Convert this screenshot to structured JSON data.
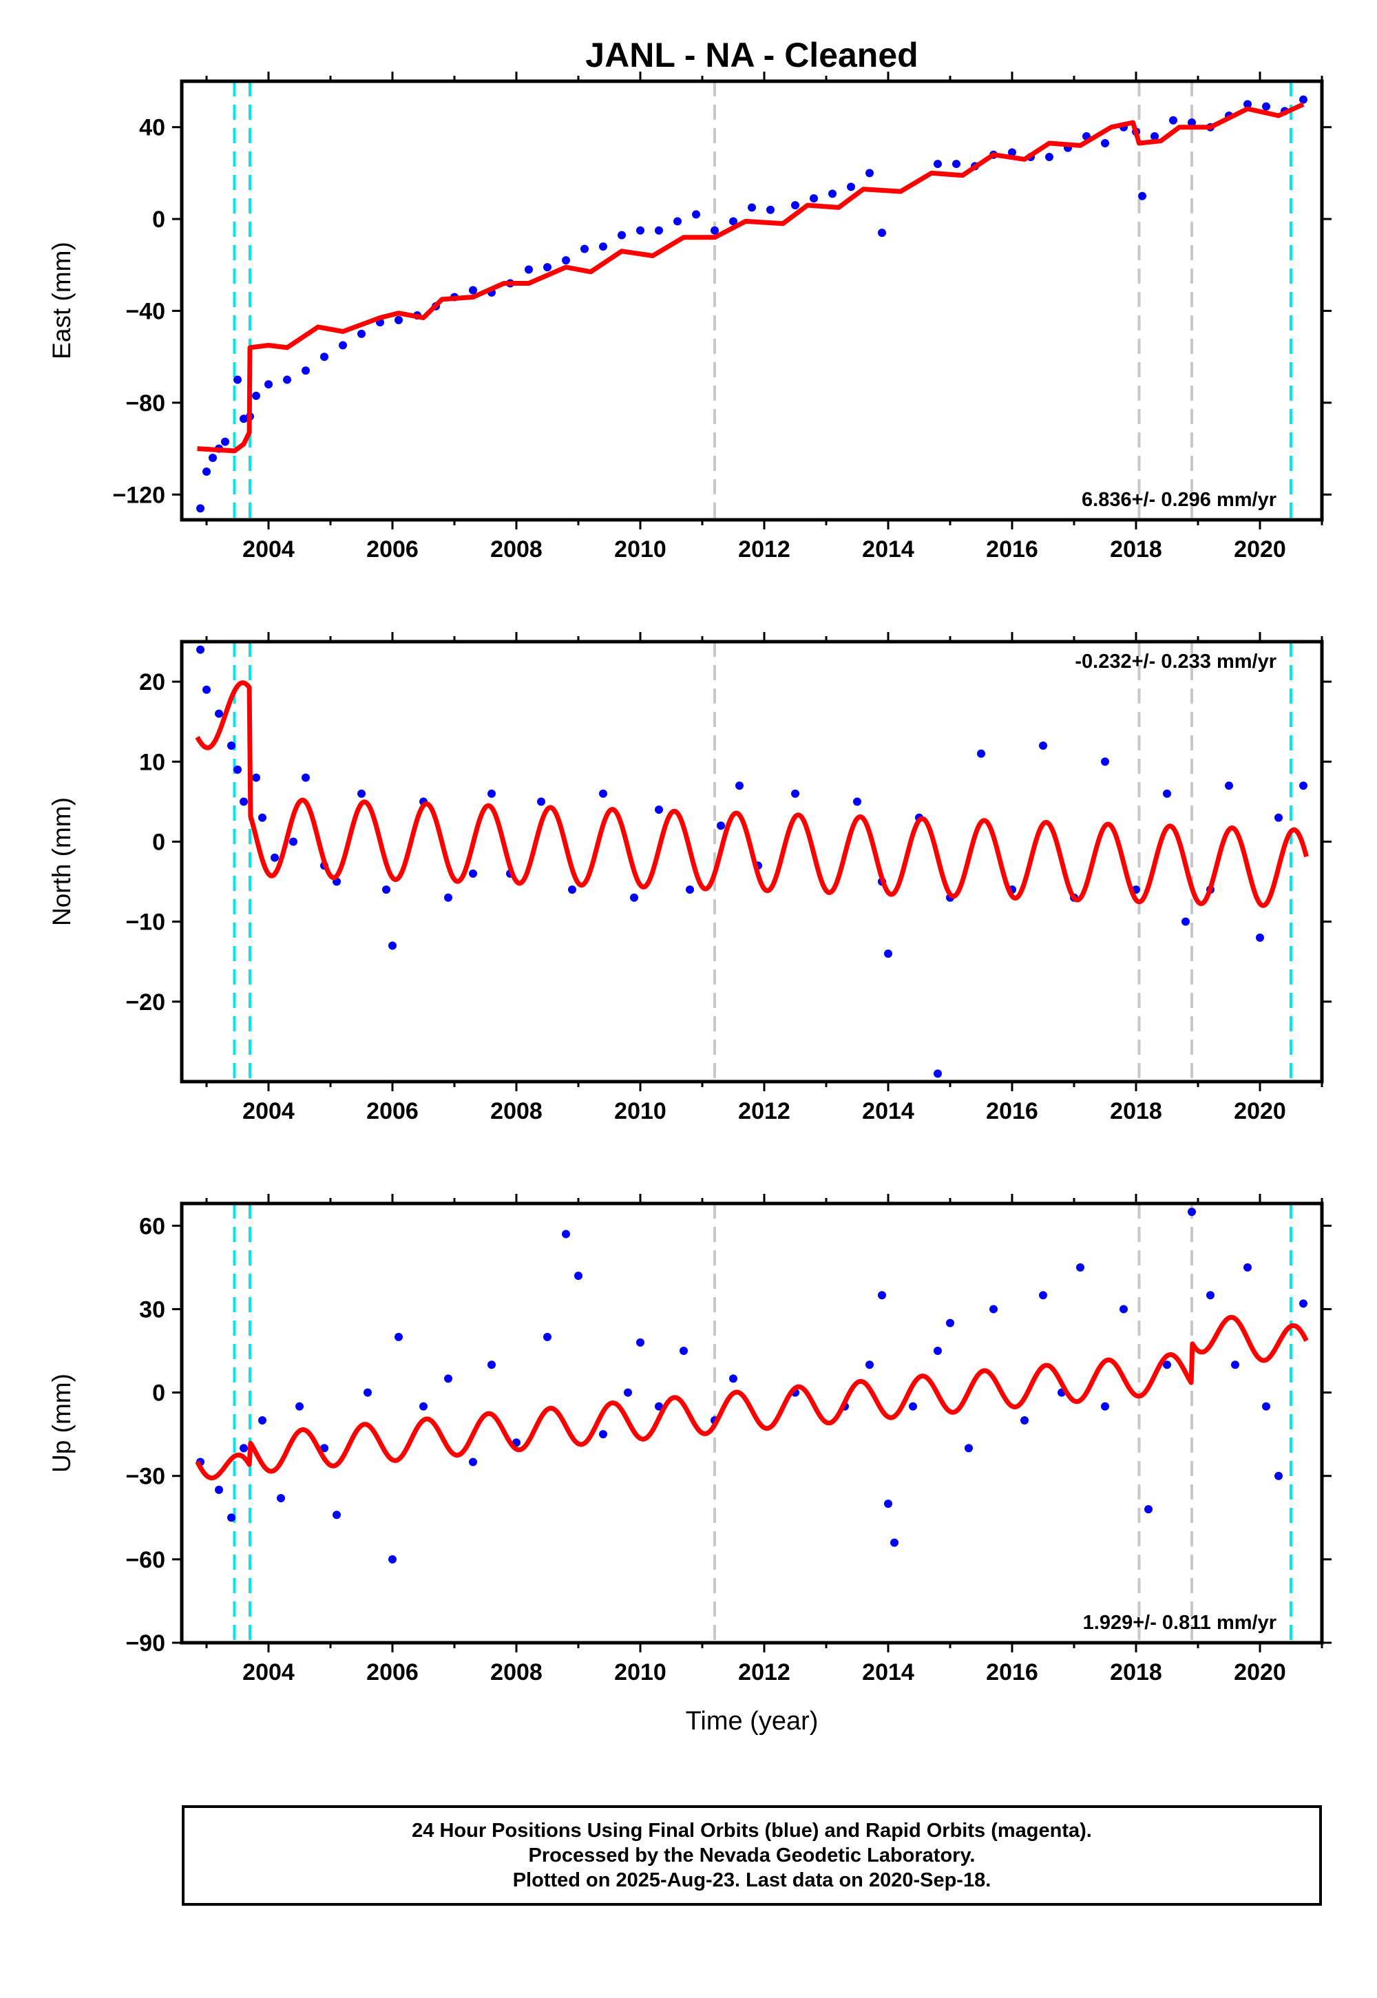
{
  "title": "JANL  - NA - Cleaned",
  "footer": {
    "line1": "24 Hour Positions Using Final Orbits (blue) and Rapid Orbits (magenta).",
    "line2": "Processed by the Nevada Geodetic Laboratory.",
    "line3": "Plotted on 2025-Aug-23. Last data on 2020-Sep-18."
  },
  "colors": {
    "data": "#0000ff",
    "model": "#ff0000",
    "equipment_change": "#00e5ee",
    "earthquake": "#c8c8c8"
  },
  "chart_data": [
    {
      "type": "scatter",
      "name": "east",
      "ylabel": "East (mm)",
      "xlabel": "",
      "xlim": [
        2002.6,
        2021.0
      ],
      "ylim": [
        -131,
        60
      ],
      "xticks": [
        2004,
        2006,
        2008,
        2010,
        2012,
        2014,
        2016,
        2018,
        2020
      ],
      "xtick_labels": [
        "2004",
        "2006",
        "2008",
        "2010",
        "2012",
        "2014",
        "2016",
        "2018",
        "2020"
      ],
      "yticks": [
        -120,
        -80,
        -40,
        0,
        40
      ],
      "ytick_labels": [
        "−120",
        "−80",
        "−40",
        "0",
        "40"
      ],
      "rate_label": "6.836+/- 0.296 mm/yr",
      "rate_position": "bottom-right",
      "equipment_changes": [
        2003.45,
        2003.7,
        2020.5
      ],
      "earthquakes": [
        2011.2,
        2018.05,
        2018.9
      ],
      "data": [
        [
          2002.9,
          -126
        ],
        [
          2003.0,
          -110
        ],
        [
          2003.1,
          -104
        ],
        [
          2003.2,
          -100
        ],
        [
          2003.3,
          -97
        ],
        [
          2003.5,
          -70
        ],
        [
          2003.6,
          -87
        ],
        [
          2003.7,
          -86
        ],
        [
          2003.8,
          -77
        ],
        [
          2004.0,
          -72
        ],
        [
          2004.3,
          -70
        ],
        [
          2004.6,
          -66
        ],
        [
          2004.9,
          -60
        ],
        [
          2005.2,
          -55
        ],
        [
          2005.5,
          -50
        ],
        [
          2005.8,
          -45
        ],
        [
          2006.1,
          -44
        ],
        [
          2006.4,
          -42
        ],
        [
          2006.7,
          -38
        ],
        [
          2007.0,
          -34
        ],
        [
          2007.3,
          -31
        ],
        [
          2007.6,
          -32
        ],
        [
          2007.9,
          -28
        ],
        [
          2008.2,
          -22
        ],
        [
          2008.5,
          -21
        ],
        [
          2008.8,
          -18
        ],
        [
          2009.1,
          -13
        ],
        [
          2009.4,
          -12
        ],
        [
          2009.7,
          -7
        ],
        [
          2010.0,
          -5
        ],
        [
          2010.3,
          -5
        ],
        [
          2010.6,
          -1
        ],
        [
          2010.9,
          2
        ],
        [
          2011.2,
          -5
        ],
        [
          2011.5,
          -1
        ],
        [
          2011.8,
          5
        ],
        [
          2012.1,
          4
        ],
        [
          2012.5,
          6
        ],
        [
          2012.8,
          9
        ],
        [
          2013.1,
          11
        ],
        [
          2013.4,
          14
        ],
        [
          2013.7,
          20
        ],
        [
          2013.9,
          -6
        ],
        [
          2014.8,
          24
        ],
        [
          2015.1,
          24
        ],
        [
          2015.4,
          23
        ],
        [
          2015.7,
          28
        ],
        [
          2016.0,
          29
        ],
        [
          2016.3,
          27
        ],
        [
          2016.6,
          27
        ],
        [
          2016.9,
          31
        ],
        [
          2017.2,
          36
        ],
        [
          2017.5,
          33
        ],
        [
          2017.8,
          40
        ],
        [
          2018.0,
          38
        ],
        [
          2018.1,
          10
        ],
        [
          2018.3,
          36
        ],
        [
          2018.6,
          43
        ],
        [
          2018.9,
          42
        ],
        [
          2019.2,
          40
        ],
        [
          2019.5,
          45
        ],
        [
          2019.8,
          50
        ],
        [
          2020.1,
          49
        ],
        [
          2020.4,
          47
        ],
        [
          2020.7,
          52
        ]
      ],
      "model": [
        [
          2002.85,
          -100
        ],
        [
          2003.45,
          -101
        ],
        [
          2003.6,
          -98
        ],
        [
          2003.69,
          -93
        ],
        [
          2003.7,
          -56
        ],
        [
          2004.0,
          -55
        ],
        [
          2004.3,
          -56
        ],
        [
          2004.8,
          -47
        ],
        [
          2005.2,
          -49
        ],
        [
          2005.8,
          -43
        ],
        [
          2006.1,
          -41
        ],
        [
          2006.5,
          -43
        ],
        [
          2006.8,
          -35
        ],
        [
          2007.3,
          -34
        ],
        [
          2007.8,
          -28
        ],
        [
          2008.2,
          -28
        ],
        [
          2008.8,
          -21
        ],
        [
          2009.2,
          -23
        ],
        [
          2009.7,
          -14
        ],
        [
          2010.2,
          -16
        ],
        [
          2010.7,
          -8
        ],
        [
          2011.2,
          -8
        ],
        [
          2011.7,
          -1
        ],
        [
          2012.3,
          -2
        ],
        [
          2012.7,
          6
        ],
        [
          2013.2,
          5
        ],
        [
          2013.6,
          13
        ],
        [
          2014.2,
          12
        ],
        [
          2014.7,
          20
        ],
        [
          2015.2,
          19
        ],
        [
          2015.7,
          28
        ],
        [
          2016.2,
          26
        ],
        [
          2016.6,
          33
        ],
        [
          2017.1,
          32
        ],
        [
          2017.6,
          40
        ],
        [
          2017.95,
          42
        ],
        [
          2018.05,
          33
        ],
        [
          2018.4,
          34
        ],
        [
          2018.7,
          40
        ],
        [
          2019.2,
          40
        ],
        [
          2019.8,
          48
        ],
        [
          2020.3,
          45
        ],
        [
          2020.7,
          50
        ]
      ]
    },
    {
      "type": "scatter",
      "name": "north",
      "ylabel": "North (mm)",
      "xlabel": "",
      "xlim": [
        2002.6,
        2021.0
      ],
      "ylim": [
        -30,
        25
      ],
      "xticks": [
        2004,
        2006,
        2008,
        2010,
        2012,
        2014,
        2016,
        2018,
        2020
      ],
      "xtick_labels": [
        "2004",
        "2006",
        "2008",
        "2010",
        "2012",
        "2014",
        "2016",
        "2018",
        "2020"
      ],
      "yticks": [
        -20,
        -10,
        0,
        10,
        20
      ],
      "ytick_labels": [
        "−20",
        "−10",
        "0",
        "10",
        "20"
      ],
      "rate_label": "-0.232+/- 0.233 mm/yr",
      "rate_position": "top-right",
      "equipment_changes": [
        2003.45,
        2003.7,
        2020.5
      ],
      "earthquakes": [
        2011.2,
        2018.05,
        2018.9
      ],
      "data": [
        [
          2002.9,
          24
        ],
        [
          2003.0,
          19
        ],
        [
          2003.2,
          16
        ],
        [
          2003.4,
          12
        ],
        [
          2003.5,
          9
        ],
        [
          2003.6,
          5
        ],
        [
          2003.8,
          8
        ],
        [
          2003.9,
          3
        ],
        [
          2004.1,
          -2
        ],
        [
          2004.4,
          0
        ],
        [
          2004.6,
          8
        ],
        [
          2004.9,
          -3
        ],
        [
          2005.1,
          -5
        ],
        [
          2005.5,
          6
        ],
        [
          2005.9,
          -6
        ],
        [
          2006.0,
          -13
        ],
        [
          2006.5,
          5
        ],
        [
          2006.9,
          -7
        ],
        [
          2007.3,
          -4
        ],
        [
          2007.6,
          6
        ],
        [
          2007.9,
          -4
        ],
        [
          2008.4,
          5
        ],
        [
          2008.9,
          -6
        ],
        [
          2009.4,
          6
        ],
        [
          2009.9,
          -7
        ],
        [
          2010.3,
          4
        ],
        [
          2010.8,
          -6
        ],
        [
          2011.3,
          2
        ],
        [
          2011.6,
          7
        ],
        [
          2011.9,
          -3
        ],
        [
          2012.5,
          6
        ],
        [
          2013.5,
          5
        ],
        [
          2013.9,
          -5
        ],
        [
          2014.0,
          -14
        ],
        [
          2014.5,
          3
        ],
        [
          2014.8,
          -29
        ],
        [
          2015.0,
          -7
        ],
        [
          2015.5,
          11
        ],
        [
          2016.0,
          -6
        ],
        [
          2016.5,
          12
        ],
        [
          2017.0,
          -7
        ],
        [
          2017.5,
          10
        ],
        [
          2018.0,
          -6
        ],
        [
          2018.5,
          6
        ],
        [
          2018.8,
          -10
        ],
        [
          2019.2,
          -6
        ],
        [
          2019.5,
          7
        ],
        [
          2020.0,
          -12
        ],
        [
          2020.3,
          3
        ],
        [
          2020.7,
          7
        ]
      ],
      "model_params": {
        "segments": [
          {
            "from": 2002.85,
            "to": 2003.7,
            "offset": 14,
            "trend": 4,
            "amplitude": 3
          },
          {
            "from": 2003.7,
            "to": 2020.75,
            "offset": 0.6,
            "trend": -0.232,
            "amplitude": 4.8
          }
        ]
      }
    },
    {
      "type": "scatter",
      "name": "up",
      "ylabel": "Up (mm)",
      "xlabel": "Time (year)",
      "xlim": [
        2002.6,
        2021.0
      ],
      "ylim": [
        -90,
        68
      ],
      "xticks": [
        2004,
        2006,
        2008,
        2010,
        2012,
        2014,
        2016,
        2018,
        2020
      ],
      "xtick_labels": [
        "2004",
        "2006",
        "2008",
        "2010",
        "2012",
        "2014",
        "2016",
        "2018",
        "2020"
      ],
      "yticks": [
        -90,
        -60,
        -30,
        0,
        30,
        60
      ],
      "ytick_labels": [
        "−90",
        "−60",
        "−30",
        "0",
        "30",
        "60"
      ],
      "rate_label": "1.929+/- 0.811 mm/yr",
      "rate_position": "bottom-right",
      "equipment_changes": [
        2003.45,
        2003.7,
        2020.5
      ],
      "earthquakes": [
        2011.2,
        2018.05,
        2018.9
      ],
      "data": [
        [
          2002.9,
          -25
        ],
        [
          2003.2,
          -35
        ],
        [
          2003.4,
          -45
        ],
        [
          2003.6,
          -20
        ],
        [
          2003.9,
          -10
        ],
        [
          2004.2,
          -38
        ],
        [
          2004.5,
          -5
        ],
        [
          2004.9,
          -20
        ],
        [
          2005.1,
          -44
        ],
        [
          2005.6,
          0
        ],
        [
          2006.0,
          -60
        ],
        [
          2006.1,
          20
        ],
        [
          2006.5,
          -5
        ],
        [
          2006.9,
          5
        ],
        [
          2007.3,
          -25
        ],
        [
          2007.6,
          10
        ],
        [
          2008.0,
          -18
        ],
        [
          2008.5,
          20
        ],
        [
          2008.8,
          57
        ],
        [
          2009.0,
          42
        ],
        [
          2009.4,
          -15
        ],
        [
          2009.8,
          0
        ],
        [
          2010.0,
          18
        ],
        [
          2010.3,
          -5
        ],
        [
          2010.7,
          15
        ],
        [
          2011.2,
          -10
        ],
        [
          2011.5,
          5
        ],
        [
          2012.5,
          0
        ],
        [
          2013.3,
          -5
        ],
        [
          2013.7,
          10
        ],
        [
          2013.9,
          35
        ],
        [
          2014.0,
          -40
        ],
        [
          2014.1,
          -54
        ],
        [
          2014.4,
          -5
        ],
        [
          2014.8,
          15
        ],
        [
          2015.0,
          25
        ],
        [
          2015.3,
          -20
        ],
        [
          2015.7,
          30
        ],
        [
          2016.2,
          -10
        ],
        [
          2016.5,
          35
        ],
        [
          2016.8,
          0
        ],
        [
          2017.1,
          45
        ],
        [
          2017.5,
          -5
        ],
        [
          2017.8,
          30
        ],
        [
          2018.2,
          -42
        ],
        [
          2018.5,
          10
        ],
        [
          2018.9,
          65
        ],
        [
          2019.2,
          35
        ],
        [
          2019.6,
          10
        ],
        [
          2019.8,
          45
        ],
        [
          2020.1,
          -5
        ],
        [
          2020.3,
          -30
        ],
        [
          2020.7,
          32
        ]
      ],
      "model_params": {
        "segments": [
          {
            "from": 2002.85,
            "to": 2003.7,
            "offset": -23,
            "trend": -8,
            "amplitude": 6
          },
          {
            "from": 2003.7,
            "to": 2018.9,
            "offset": -22,
            "trend": 1.929,
            "amplitude": 7
          },
          {
            "from": 2018.9,
            "to": 2020.75,
            "offset": 22,
            "trend": -3,
            "amplitude": 7
          }
        ]
      }
    }
  ]
}
